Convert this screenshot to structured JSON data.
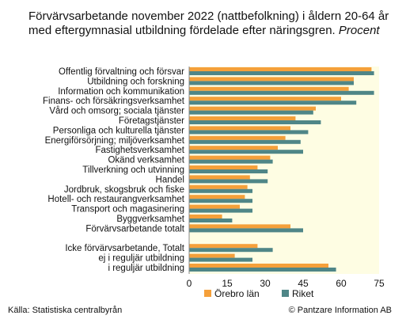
{
  "title": {
    "main": "Förvärvsarbetande november 2022 (nattbefolkning) i åldern 20-64 år med eftergymnasial utbildning fördelade efter näringsgren.",
    "unit": "Procent"
  },
  "source": "Källa: Statistiska centralbyrån",
  "copyright": "© Pantzare Information AB",
  "colors": {
    "orebro": "#f5a03a",
    "riket": "#4f8687",
    "plot_bg": "#fefde3"
  },
  "chart_data": {
    "type": "bar",
    "orientation": "horizontal",
    "categories": [
      "Offentlig förvaltning och försvar",
      "Utbildning och forskning",
      "Information och kommunikation",
      "Finans- och försäkringsverksamhet",
      "Vård och omsorg; sociala tjänster",
      "Företagstjänster",
      "Personliga och kulturella tjänster",
      "Energiförsörjning; miljöverksamhet",
      "Fastighetsverksamhet",
      "Okänd verksamhet",
      "Tillverkning och utvinning",
      "Handel",
      "Jordbruk, skogsbruk och fiske",
      "Hotell- och restaurangverksamhet",
      "Transport och magasinering",
      "Byggverksamhet",
      "Förvärvsarbetande totalt",
      "",
      "Icke förvärvsarbetande, Totalt",
      "ej i reguljär utbildning",
      "i reguljär utbildning"
    ],
    "series": [
      {
        "name": "Örebro län",
        "values": [
          72,
          65,
          63,
          60,
          50,
          42,
          40,
          38,
          35,
          32,
          27,
          24,
          23,
          22,
          20,
          13,
          40,
          null,
          27,
          18,
          55
        ]
      },
      {
        "name": "Riket",
        "values": [
          73,
          65,
          73,
          66,
          49,
          52,
          47,
          44,
          45,
          33,
          31,
          31,
          25,
          25,
          25,
          17,
          45,
          null,
          33,
          25,
          58
        ]
      }
    ],
    "xlim": [
      0,
      75
    ],
    "xticks": [
      0,
      15,
      30,
      45,
      60,
      75
    ],
    "legend": "bottom"
  }
}
